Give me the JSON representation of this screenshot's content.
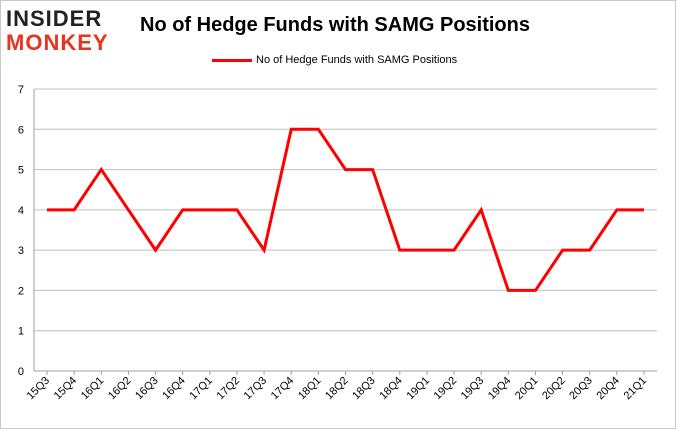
{
  "logo": {
    "line1": "INSIDER",
    "line2": "MONKEY"
  },
  "chart_data": {
    "type": "line",
    "title": "No of Hedge Funds with SAMG Positions",
    "categories": [
      "15Q3",
      "15Q4",
      "16Q1",
      "16Q2",
      "16Q3",
      "16Q4",
      "17Q1",
      "17Q2",
      "17Q3",
      "17Q4",
      "18Q1",
      "18Q2",
      "18Q3",
      "18Q4",
      "19Q1",
      "19Q2",
      "19Q3",
      "19Q4",
      "20Q1",
      "20Q2",
      "20Q3",
      "20Q4",
      "21Q1"
    ],
    "series": [
      {
        "name": "No of Hedge Funds with SAMG Positions",
        "values": [
          4,
          4,
          5,
          4,
          3,
          4,
          4,
          4,
          3,
          6,
          6,
          5,
          5,
          3,
          3,
          3,
          4,
          2,
          2,
          3,
          3,
          4,
          4
        ],
        "color": "#ff0000"
      }
    ],
    "ylim": [
      0,
      7
    ],
    "yticks": [
      0,
      1,
      2,
      3,
      4,
      5,
      6,
      7
    ],
    "grid": true,
    "legend_position": "top-center",
    "grid_color": "#c0c0c0"
  }
}
